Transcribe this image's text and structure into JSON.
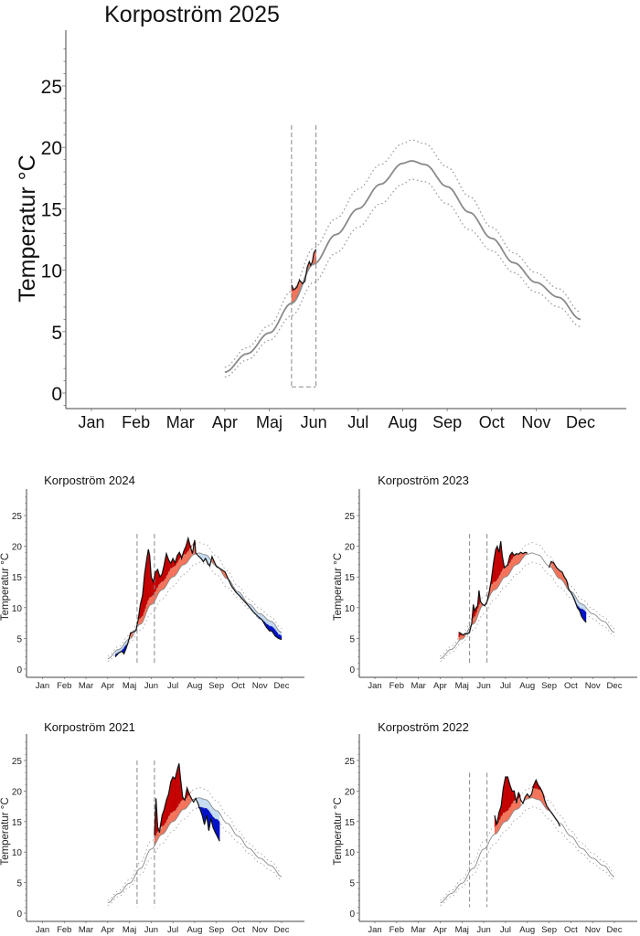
{
  "colors": {
    "mean_line": "#8a8a8a",
    "band_line": "#9a9a9a",
    "above_mean": "#f4735a",
    "above_upper": "#c40000",
    "below_mean": "#c6dcf2",
    "below_lower": "#0010c8",
    "observed": "#111111",
    "window_line": "#888888"
  },
  "chart_data": [
    {
      "id": "2025",
      "type": "line",
      "title": "Korpoström 2025",
      "xlabel": "",
      "ylabel": "Temperatur °C",
      "x_ticks": [
        "Jan",
        "Feb",
        "Mar",
        "Apr",
        "Maj",
        "Jun",
        "Jul",
        "Aug",
        "Sep",
        "Oct",
        "Nov",
        "Dec"
      ],
      "y_ticks": [
        0,
        5,
        10,
        15,
        20,
        25
      ],
      "ylim": [
        -1.2,
        29
      ],
      "grid": false,
      "window_months": [
        5.5,
        6.05
      ],
      "window_box": true,
      "observed": [
        [
          5.5,
          8.8
        ],
        [
          5.55,
          8.4
        ],
        [
          5.62,
          8.6
        ],
        [
          5.68,
          9.2
        ],
        [
          5.75,
          8.9
        ],
        [
          5.8,
          9.1
        ],
        [
          5.85,
          10.2
        ],
        [
          5.9,
          10.7
        ],
        [
          5.93,
          10.4
        ],
        [
          5.97,
          10.7
        ],
        [
          6.0,
          11.4
        ],
        [
          6.05,
          11.7
        ]
      ]
    },
    {
      "id": "2024",
      "type": "line",
      "title": "Korpoström 2024",
      "ylabel": "Temperatur °C",
      "x_ticks": [
        "Jan",
        "Feb",
        "Mar",
        "Apr",
        "Maj",
        "Jun",
        "Jul",
        "Aug",
        "Sep",
        "Oct",
        "Nov",
        "Dec"
      ],
      "y_ticks": [
        0,
        5,
        10,
        15,
        20,
        25
      ],
      "ylim": [
        -1.2,
        29
      ],
      "window_months": [
        5.35,
        6.15
      ],
      "observed": [
        [
          4.35,
          2.0
        ],
        [
          4.5,
          2.6
        ],
        [
          4.65,
          2.9
        ],
        [
          4.75,
          2.5
        ],
        [
          4.85,
          3.4
        ],
        [
          4.95,
          4.5
        ],
        [
          5.05,
          5.9
        ],
        [
          5.15,
          6.0
        ],
        [
          5.3,
          6.3
        ],
        [
          5.4,
          8.0
        ],
        [
          5.5,
          10.5
        ],
        [
          5.6,
          12.0
        ],
        [
          5.7,
          15.5
        ],
        [
          5.8,
          18.0
        ],
        [
          5.87,
          19.5
        ],
        [
          5.93,
          18.5
        ],
        [
          6.0,
          15.0
        ],
        [
          6.1,
          14.2
        ],
        [
          6.2,
          15.8
        ],
        [
          6.3,
          16.2
        ],
        [
          6.4,
          15.0
        ],
        [
          6.5,
          15.5
        ],
        [
          6.6,
          17.0
        ],
        [
          6.7,
          18.8
        ],
        [
          6.8,
          17.8
        ],
        [
          6.9,
          17.2
        ],
        [
          7.0,
          18.0
        ],
        [
          7.1,
          17.3
        ],
        [
          7.2,
          18.5
        ],
        [
          7.3,
          19.0
        ],
        [
          7.4,
          18.0
        ],
        [
          7.5,
          19.2
        ],
        [
          7.6,
          20.0
        ],
        [
          7.7,
          21.3
        ],
        [
          7.8,
          20.0
        ],
        [
          7.9,
          18.8
        ],
        [
          8.0,
          21.0
        ],
        [
          8.05,
          18.9
        ],
        [
          8.2,
          18.3
        ],
        [
          8.3,
          18.0
        ],
        [
          8.4,
          17.5
        ],
        [
          8.5,
          18.0
        ],
        [
          8.6,
          17.2
        ],
        [
          8.7,
          16.8
        ],
        [
          8.8,
          18.3
        ],
        [
          8.9,
          17.5
        ],
        [
          9.0,
          16.7
        ],
        [
          9.2,
          16.3
        ],
        [
          9.4,
          15.8
        ],
        [
          9.5,
          15.0
        ],
        [
          9.7,
          13.5
        ],
        [
          9.9,
          12.5
        ],
        [
          10.1,
          11.8
        ],
        [
          10.3,
          11.0
        ],
        [
          10.5,
          10.2
        ],
        [
          10.7,
          9.3
        ],
        [
          10.9,
          8.6
        ],
        [
          11.1,
          8.0
        ],
        [
          11.3,
          6.8
        ],
        [
          11.45,
          6.2
        ],
        [
          11.55,
          6.2
        ],
        [
          11.7,
          5.4
        ],
        [
          11.85,
          5.0
        ],
        [
          12.0,
          4.8
        ]
      ]
    },
    {
      "id": "2023",
      "type": "line",
      "title": "Korpoström 2023",
      "ylabel": "Temperatur °C",
      "x_ticks": [
        "Jan",
        "Feb",
        "Mar",
        "Apr",
        "Maj",
        "Jun",
        "Jul",
        "Aug",
        "Sep",
        "Oct",
        "Nov",
        "Dec"
      ],
      "y_ticks": [
        0,
        5,
        10,
        15,
        20,
        25
      ],
      "ylim": [
        -1.2,
        29
      ],
      "window_months": [
        5.35,
        6.15
      ],
      "observed": [
        [
          4.85,
          6.0
        ],
        [
          4.95,
          5.8
        ],
        [
          5.05,
          5.5
        ],
        [
          5.15,
          5.8
        ],
        [
          5.25,
          5.7
        ],
        [
          5.35,
          6.0
        ],
        [
          5.45,
          7.5
        ],
        [
          5.52,
          10.5
        ],
        [
          5.58,
          9.5
        ],
        [
          5.65,
          10.0
        ],
        [
          5.72,
          10.3
        ],
        [
          5.78,
          12.8
        ],
        [
          5.85,
          11.0
        ],
        [
          5.95,
          10.5
        ],
        [
          6.05,
          10.3
        ],
        [
          6.15,
          11.0
        ],
        [
          6.25,
          12.5
        ],
        [
          6.35,
          14.5
        ],
        [
          6.45,
          17.3
        ],
        [
          6.55,
          19.5
        ],
        [
          6.62,
          20.0
        ],
        [
          6.7,
          19.0
        ],
        [
          6.78,
          20.8
        ],
        [
          6.85,
          18.5
        ],
        [
          6.95,
          16.5
        ],
        [
          7.1,
          17.0
        ],
        [
          7.2,
          18.5
        ],
        [
          7.3,
          19.0
        ],
        [
          7.4,
          18.5
        ],
        [
          7.5,
          18.8
        ],
        [
          7.6,
          18.7
        ],
        [
          7.7,
          19.0
        ],
        [
          7.8,
          18.8
        ],
        [
          7.9,
          19.0
        ],
        [
          8.0,
          18.9
        ],
        [
          9.0,
          16.5
        ],
        [
          9.1,
          17.5
        ],
        [
          9.2,
          17.3
        ],
        [
          9.35,
          16.5
        ],
        [
          9.5,
          16.0
        ],
        [
          9.6,
          15.8
        ],
        [
          9.7,
          15.0
        ],
        [
          9.8,
          14.5
        ],
        [
          9.9,
          13.0
        ],
        [
          10.0,
          12.5
        ],
        [
          10.15,
          11.5
        ],
        [
          10.3,
          10.0
        ],
        [
          10.4,
          9.5
        ],
        [
          10.5,
          8.5
        ],
        [
          10.6,
          8.0
        ],
        [
          10.7,
          7.6
        ]
      ]
    },
    {
      "id": "2021",
      "type": "line",
      "title": "Korpoström 2021",
      "ylabel": "Temperatur °C",
      "x_ticks": [
        "Jan",
        "Feb",
        "Mar",
        "Apr",
        "Maj",
        "Jun",
        "Jul",
        "Aug",
        "Sep",
        "Oct",
        "Nov",
        "Dec"
      ],
      "y_ticks": [
        0,
        5,
        10,
        15,
        20,
        25
      ],
      "ylim": [
        -1.2,
        29
      ],
      "window_months": [
        5.35,
        6.15
      ],
      "observed": [
        [
          6.15,
          12.8
        ],
        [
          6.22,
          18.8
        ],
        [
          6.3,
          14.0
        ],
        [
          6.38,
          13.2
        ],
        [
          6.5,
          16.0
        ],
        [
          6.6,
          17.0
        ],
        [
          6.7,
          18.5
        ],
        [
          6.8,
          19.5
        ],
        [
          6.9,
          21.5
        ],
        [
          7.0,
          22.3
        ],
        [
          7.1,
          22.0
        ],
        [
          7.2,
          23.5
        ],
        [
          7.28,
          24.5
        ],
        [
          7.35,
          22.0
        ],
        [
          7.45,
          19.0
        ],
        [
          7.55,
          18.5
        ],
        [
          7.65,
          20.5
        ],
        [
          7.75,
          19.5
        ],
        [
          7.85,
          18.8
        ],
        [
          7.95,
          18.2
        ],
        [
          8.05,
          18.8
        ],
        [
          8.15,
          18.0
        ],
        [
          8.25,
          17.0
        ],
        [
          8.35,
          16.0
        ],
        [
          8.45,
          14.5
        ],
        [
          8.55,
          16.0
        ],
        [
          8.65,
          13.5
        ],
        [
          8.75,
          15.5
        ],
        [
          8.85,
          14.0
        ],
        [
          8.95,
          13.2
        ],
        [
          9.05,
          12.5
        ],
        [
          9.15,
          11.8
        ]
      ]
    },
    {
      "id": "2022",
      "type": "line",
      "title": "Korpoström 2022",
      "ylabel": "Temperatur °C",
      "x_ticks": [
        "Jan",
        "Feb",
        "Mar",
        "Apr",
        "Maj",
        "Jun",
        "Jul",
        "Aug",
        "Sep",
        "Oct",
        "Nov",
        "Dec"
      ],
      "y_ticks": [
        0,
        5,
        10,
        15,
        20,
        25
      ],
      "ylim": [
        -1.2,
        29
      ],
      "window_months": [
        5.35,
        6.15
      ],
      "observed": [
        [
          6.5,
          16.0
        ],
        [
          6.6,
          14.5
        ],
        [
          6.7,
          16.5
        ],
        [
          6.8,
          17.5
        ],
        [
          6.9,
          20.5
        ],
        [
          7.0,
          22.3
        ],
        [
          7.1,
          22.3
        ],
        [
          7.2,
          21.0
        ],
        [
          7.3,
          20.0
        ],
        [
          7.4,
          20.0
        ],
        [
          7.5,
          18.0
        ],
        [
          7.6,
          19.8
        ],
        [
          7.7,
          18.5
        ],
        [
          7.8,
          18.0
        ],
        [
          7.9,
          19.0
        ],
        [
          8.0,
          19.5
        ],
        [
          8.1,
          19.0
        ],
        [
          8.2,
          19.5
        ],
        [
          8.3,
          21.0
        ],
        [
          8.4,
          21.8
        ],
        [
          8.5,
          21.0
        ],
        [
          8.6,
          20.5
        ],
        [
          8.7,
          19.8
        ],
        [
          8.8,
          18.5
        ],
        [
          8.9,
          17.5
        ],
        [
          9.0,
          17.0
        ],
        [
          9.1,
          16.5
        ],
        [
          9.2,
          16.0
        ],
        [
          9.3,
          15.5
        ],
        [
          9.4,
          15.0
        ],
        [
          9.5,
          14.2
        ]
      ]
    }
  ],
  "climatology": {
    "x": [
      4.0,
      4.5,
      5.0,
      5.5,
      6.0,
      6.5,
      7.0,
      7.5,
      8.0,
      8.2,
      8.5,
      9.0,
      9.5,
      10.0,
      10.5,
      11.0,
      11.5,
      12.0
    ],
    "mean": [
      1.7,
      3.2,
      4.9,
      7.3,
      10.5,
      12.9,
      15.0,
      17.0,
      18.7,
      18.9,
      18.6,
      16.8,
      14.7,
      12.6,
      10.6,
      9.0,
      7.8,
      6.0
    ],
    "upper": [
      2.1,
      3.7,
      5.5,
      8.3,
      11.8,
      14.2,
      16.6,
      18.6,
      20.3,
      20.6,
      20.3,
      18.4,
      16.0,
      13.5,
      11.4,
      9.8,
      8.5,
      6.6
    ],
    "lower": [
      1.3,
      2.7,
      4.3,
      6.3,
      9.0,
      11.4,
      13.5,
      15.4,
      17.0,
      17.4,
      17.2,
      15.4,
      13.3,
      11.6,
      9.8,
      8.2,
      7.0,
      5.4
    ]
  }
}
